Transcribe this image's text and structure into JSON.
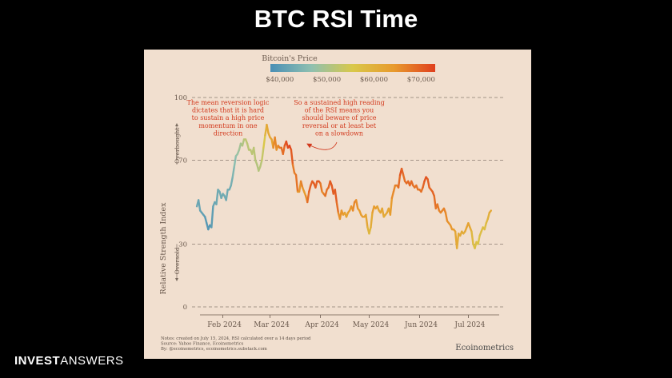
{
  "slide": {
    "title": "BTC RSI Time"
  },
  "brand": {
    "part1": "INVEST",
    "part2": "ANSWERS"
  },
  "chart_data": {
    "type": "line",
    "title": "",
    "ylabel": "Relative Strength Index",
    "ylim": [
      0,
      100
    ],
    "yticks": [
      0,
      30,
      70,
      100
    ],
    "xticks": [
      {
        "label": "Feb 2024",
        "date": "2024-02-01"
      },
      {
        "label": "Mar 2024",
        "date": "2024-03-01"
      },
      {
        "label": "Apr 2024",
        "date": "2024-04-01"
      },
      {
        "label": "May 2024",
        "date": "2024-05-01"
      },
      {
        "label": "Jun 2024",
        "date": "2024-06-01"
      },
      {
        "label": "Jul 2024",
        "date": "2024-07-01"
      }
    ],
    "xlim": [
      "2024-01-13",
      "2024-07-20"
    ],
    "zone_labels": {
      "overbought": "Overbought",
      "oversold": "Oversold"
    },
    "colorbar": {
      "title": "Bitcoin's Price",
      "min": 38000,
      "max": 73000,
      "ticks": [
        {
          "label": "$40,000",
          "value": 40000
        },
        {
          "label": "$50,000",
          "value": 50000
        },
        {
          "label": "$60,000",
          "value": 60000
        },
        {
          "label": "$70,000",
          "value": 70000
        }
      ],
      "colors": [
        "#4a8fb5",
        "#8fc0b0",
        "#d9c84a",
        "#e89a2d",
        "#e0401e"
      ]
    },
    "annotations": [
      {
        "text": [
          "The mean reversion logic",
          "dictates that it is hard",
          "to sustain a high price",
          "momentum in one",
          "direction"
        ],
        "color": "#d2391d"
      },
      {
        "text": [
          "So a sustained high reading",
          "of the RSI means you",
          "should beware of price",
          "reversal or at least bet",
          "on a slowdown"
        ],
        "color": "#d2391d"
      }
    ],
    "notes": [
      "Notes: created on July 15, 2024, RSI calculated over a 14 days period",
      "Source: Yahoo Finance, Ecoinometrics",
      "By: @ecoinometrics, ecoinometrics.substack.com"
    ],
    "source_brand": "Ecoinometrics",
    "series": [
      {
        "points": [
          [
            "2024-01-16",
            48,
            42000
          ],
          [
            "2024-01-17",
            51,
            42500
          ],
          [
            "2024-01-18",
            46,
            41500
          ],
          [
            "2024-01-19",
            45,
            41200
          ],
          [
            "2024-01-20",
            44,
            41000
          ],
          [
            "2024-01-21",
            43,
            40500
          ],
          [
            "2024-01-22",
            40,
            39800
          ],
          [
            "2024-01-23",
            37,
            39000
          ],
          [
            "2024-01-24",
            39,
            39800
          ],
          [
            "2024-01-25",
            38,
            39500
          ],
          [
            "2024-01-26",
            48,
            41800
          ],
          [
            "2024-01-27",
            50,
            42000
          ],
          [
            "2024-01-28",
            49,
            42100
          ],
          [
            "2024-01-29",
            56,
            43300
          ],
          [
            "2024-01-30",
            55,
            43200
          ],
          [
            "2024-01-31",
            52,
            42600
          ],
          [
            "2024-02-01",
            54,
            43000
          ],
          [
            "2024-02-02",
            53,
            43100
          ],
          [
            "2024-02-03",
            51,
            43000
          ],
          [
            "2024-02-04",
            56,
            42700
          ],
          [
            "2024-02-05",
            56,
            42800
          ],
          [
            "2024-02-06",
            58,
            43100
          ],
          [
            "2024-02-07",
            62,
            44300
          ],
          [
            "2024-02-08",
            67,
            45300
          ],
          [
            "2024-02-09",
            72,
            47200
          ],
          [
            "2024-02-10",
            73,
            47700
          ],
          [
            "2024-02-11",
            75,
            48300
          ],
          [
            "2024-02-12",
            78,
            49900
          ],
          [
            "2024-02-13",
            77,
            49700
          ],
          [
            "2024-02-14",
            80,
            51800
          ],
          [
            "2024-02-15",
            80,
            52000
          ],
          [
            "2024-02-16",
            78,
            52100
          ],
          [
            "2024-02-17",
            75,
            51600
          ],
          [
            "2024-02-18",
            75,
            52100
          ],
          [
            "2024-02-19",
            73,
            51700
          ],
          [
            "2024-02-20",
            76,
            52300
          ],
          [
            "2024-02-21",
            70,
            51300
          ],
          [
            "2024-02-22",
            68,
            51300
          ],
          [
            "2024-02-23",
            65,
            50700
          ],
          [
            "2024-02-24",
            67,
            51500
          ],
          [
            "2024-02-25",
            70,
            51700
          ],
          [
            "2024-02-26",
            76,
            54500
          ],
          [
            "2024-02-27",
            82,
            57000
          ],
          [
            "2024-02-28",
            87,
            62500
          ],
          [
            "2024-02-29",
            83,
            61200
          ],
          [
            "2024-03-01",
            81,
            62400
          ],
          [
            "2024-03-02",
            80,
            62000
          ],
          [
            "2024-03-03",
            76,
            63100
          ],
          [
            "2024-03-04",
            81,
            68300
          ],
          [
            "2024-03-05",
            75,
            63800
          ],
          [
            "2024-03-06",
            77,
            66100
          ],
          [
            "2024-03-07",
            76,
            66900
          ],
          [
            "2024-03-08",
            76,
            68300
          ],
          [
            "2024-03-09",
            73,
            68500
          ],
          [
            "2024-03-10",
            77,
            68900
          ],
          [
            "2024-03-11",
            79,
            72100
          ],
          [
            "2024-03-12",
            76,
            71500
          ],
          [
            "2024-03-13",
            77,
            73100
          ],
          [
            "2024-03-14",
            75,
            71400
          ],
          [
            "2024-03-15",
            68,
            69400
          ],
          [
            "2024-03-16",
            64,
            65300
          ],
          [
            "2024-03-17",
            63,
            68400
          ],
          [
            "2024-03-18",
            55,
            67600
          ],
          [
            "2024-03-19",
            55,
            61900
          ],
          [
            "2024-03-20",
            60,
            67900
          ],
          [
            "2024-03-21",
            57,
            65500
          ],
          [
            "2024-03-22",
            55,
            63800
          ],
          [
            "2024-03-23",
            53,
            64000
          ],
          [
            "2024-03-24",
            50,
            67200
          ],
          [
            "2024-03-25",
            55,
            70000
          ],
          [
            "2024-03-26",
            58,
            69900
          ],
          [
            "2024-03-27",
            60,
            69500
          ],
          [
            "2024-03-28",
            59,
            70800
          ],
          [
            "2024-03-29",
            57,
            69900
          ],
          [
            "2024-03-30",
            60,
            69600
          ],
          [
            "2024-03-31",
            60,
            71300
          ],
          [
            "2024-04-01",
            59,
            69700
          ],
          [
            "2024-04-02",
            55,
            65400
          ],
          [
            "2024-04-03",
            54,
            66000
          ],
          [
            "2024-04-04",
            53,
            68500
          ],
          [
            "2024-04-05",
            56,
            67800
          ],
          [
            "2024-04-06",
            57,
            68900
          ],
          [
            "2024-04-07",
            60,
            69400
          ],
          [
            "2024-04-08",
            58,
            71600
          ],
          [
            "2024-04-09",
            54,
            69100
          ],
          [
            "2024-04-10",
            56,
            70600
          ],
          [
            "2024-04-11",
            50,
            70000
          ],
          [
            "2024-04-12",
            45,
            67100
          ],
          [
            "2024-04-13",
            42,
            63900
          ],
          [
            "2024-04-14",
            46,
            65700
          ],
          [
            "2024-04-15",
            44,
            63400
          ],
          [
            "2024-04-16",
            45,
            63800
          ],
          [
            "2024-04-17",
            43,
            61300
          ],
          [
            "2024-04-18",
            45,
            63500
          ],
          [
            "2024-04-19",
            46,
            63800
          ],
          [
            "2024-04-20",
            48,
            64900
          ],
          [
            "2024-04-21",
            46,
            64900
          ],
          [
            "2024-04-22",
            50,
            66800
          ],
          [
            "2024-04-23",
            51,
            66400
          ],
          [
            "2024-04-24",
            47,
            64300
          ],
          [
            "2024-04-25",
            46,
            64500
          ],
          [
            "2024-04-26",
            44,
            63800
          ],
          [
            "2024-04-27",
            43,
            63400
          ],
          [
            "2024-04-28",
            43,
            63100
          ],
          [
            "2024-04-29",
            44,
            63800
          ],
          [
            "2024-04-30",
            38,
            60600
          ],
          [
            "2024-05-01",
            35,
            58300
          ],
          [
            "2024-05-02",
            38,
            59100
          ],
          [
            "2024-05-03",
            45,
            62900
          ],
          [
            "2024-05-04",
            48,
            63900
          ],
          [
            "2024-05-05",
            47,
            64000
          ],
          [
            "2024-05-06",
            48,
            63200
          ],
          [
            "2024-05-07",
            46,
            62300
          ],
          [
            "2024-05-08",
            45,
            61200
          ],
          [
            "2024-05-09",
            47,
            63100
          ],
          [
            "2024-05-10",
            43,
            60800
          ],
          [
            "2024-05-11",
            44,
            60800
          ],
          [
            "2024-05-12",
            45,
            61500
          ],
          [
            "2024-05-13",
            47,
            62900
          ],
          [
            "2024-05-14",
            44,
            61600
          ],
          [
            "2024-05-15",
            52,
            66200
          ],
          [
            "2024-05-16",
            55,
            65200
          ],
          [
            "2024-05-17",
            58,
            67000
          ],
          [
            "2024-05-18",
            58,
            67000
          ],
          [
            "2024-05-19",
            57,
            66300
          ],
          [
            "2024-05-20",
            63,
            71400
          ],
          [
            "2024-05-21",
            66,
            70100
          ],
          [
            "2024-05-22",
            63,
            69200
          ],
          [
            "2024-05-23",
            60,
            67900
          ],
          [
            "2024-05-24",
            59,
            68500
          ],
          [
            "2024-05-25",
            60,
            69300
          ],
          [
            "2024-05-26",
            58,
            68500
          ],
          [
            "2024-05-27",
            60,
            69400
          ],
          [
            "2024-05-28",
            58,
            68300
          ],
          [
            "2024-05-29",
            57,
            67600
          ],
          [
            "2024-05-30",
            58,
            68400
          ],
          [
            "2024-05-31",
            56,
            67500
          ],
          [
            "2024-06-01",
            56,
            67800
          ],
          [
            "2024-06-02",
            55,
            67800
          ],
          [
            "2024-06-03",
            57,
            68800
          ],
          [
            "2024-06-04",
            60,
            70600
          ],
          [
            "2024-06-05",
            62,
            71100
          ],
          [
            "2024-06-06",
            61,
            70800
          ],
          [
            "2024-06-07",
            57,
            69300
          ],
          [
            "2024-06-08",
            56,
            69300
          ],
          [
            "2024-06-09",
            55,
            69600
          ],
          [
            "2024-06-10",
            53,
            69500
          ],
          [
            "2024-06-11",
            47,
            67300
          ],
          [
            "2024-06-12",
            49,
            68200
          ],
          [
            "2024-06-13",
            46,
            66800
          ],
          [
            "2024-06-14",
            45,
            66000
          ],
          [
            "2024-06-15",
            46,
            66200
          ],
          [
            "2024-06-16",
            47,
            66600
          ],
          [
            "2024-06-17",
            45,
            66500
          ],
          [
            "2024-06-18",
            41,
            65200
          ],
          [
            "2024-06-19",
            40,
            65000
          ],
          [
            "2024-06-20",
            39,
            64900
          ],
          [
            "2024-06-21",
            37,
            64100
          ],
          [
            "2024-06-22",
            37,
            64300
          ],
          [
            "2024-06-23",
            36,
            63200
          ],
          [
            "2024-06-24",
            28,
            60300
          ],
          [
            "2024-06-25",
            35,
            61800
          ],
          [
            "2024-06-26",
            34,
            60900
          ],
          [
            "2024-06-27",
            36,
            61600
          ],
          [
            "2024-06-28",
            35,
            60300
          ],
          [
            "2024-06-29",
            36,
            60900
          ],
          [
            "2024-06-30",
            38,
            62700
          ],
          [
            "2024-07-01",
            40,
            62900
          ],
          [
            "2024-07-02",
            38,
            62100
          ],
          [
            "2024-07-03",
            36,
            60200
          ],
          [
            "2024-07-04",
            30,
            57000
          ],
          [
            "2024-07-05",
            28,
            56700
          ],
          [
            "2024-07-06",
            31,
            58200
          ],
          [
            "2024-07-07",
            30,
            55900
          ],
          [
            "2024-07-08",
            34,
            56700
          ],
          [
            "2024-07-09",
            36,
            58000
          ],
          [
            "2024-07-10",
            38,
            57700
          ],
          [
            "2024-07-11",
            37,
            57300
          ],
          [
            "2024-07-12",
            40,
            57900
          ],
          [
            "2024-07-13",
            42,
            59200
          ],
          [
            "2024-07-14",
            45,
            60800
          ],
          [
            "2024-07-15",
            46,
            62900
          ]
        ]
      }
    ]
  }
}
